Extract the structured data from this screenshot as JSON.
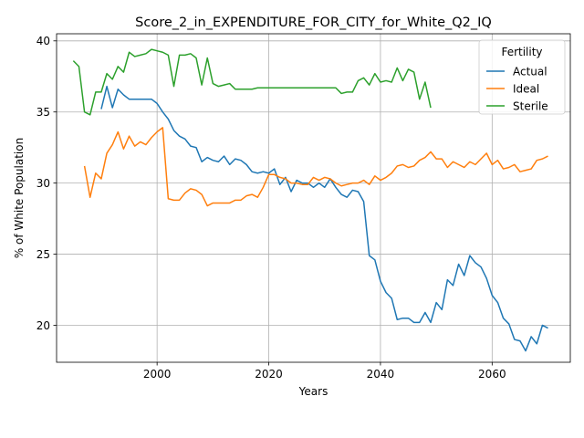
{
  "chart_data": {
    "type": "line",
    "title": "Score_2_in_EXPENDITURE_FOR_CITY_for_White_Q2_IQ",
    "xlabel": "Years",
    "ylabel": "% of White Population",
    "xlim": [
      1982,
      2074
    ],
    "ylim": [
      17.4,
      40.5
    ],
    "xticks": [
      2000,
      2020,
      2040,
      2060
    ],
    "yticks": [
      20,
      25,
      30,
      35,
      40
    ],
    "grid": true,
    "legend": {
      "title": "Fertility",
      "position": "top-right"
    },
    "series": [
      {
        "name": "Actual",
        "color": "#1f77b4",
        "x": [
          1990,
          1991,
          1992,
          1993,
          1994,
          1995,
          1996,
          1997,
          1998,
          1999,
          2000,
          2001,
          2002,
          2003,
          2004,
          2005,
          2006,
          2007,
          2008,
          2009,
          2010,
          2011,
          2012,
          2013,
          2014,
          2015,
          2016,
          2017,
          2018,
          2019,
          2020,
          2021,
          2022,
          2023,
          2024,
          2025,
          2026,
          2027,
          2028,
          2029,
          2030,
          2031,
          2032,
          2033,
          2034,
          2035,
          2036,
          2037,
          2038,
          2039,
          2040,
          2041,
          2042,
          2043,
          2044,
          2045,
          2046,
          2047,
          2048,
          2049,
          2050,
          2051,
          2052,
          2053,
          2054,
          2055,
          2056,
          2057,
          2058,
          2059,
          2060,
          2061,
          2062,
          2063,
          2064,
          2065,
          2066,
          2067,
          2068,
          2069,
          2070
        ],
        "y": [
          35.2,
          36.8,
          35.3,
          36.6,
          36.2,
          35.9,
          35.9,
          35.9,
          35.9,
          35.9,
          35.6,
          35.0,
          34.5,
          33.7,
          33.3,
          33.1,
          32.6,
          32.5,
          31.5,
          31.8,
          31.6,
          31.5,
          31.9,
          31.3,
          31.7,
          31.6,
          31.3,
          30.8,
          30.7,
          30.8,
          30.7,
          31.0,
          29.9,
          30.4,
          29.4,
          30.2,
          30.0,
          30.0,
          29.7,
          30.0,
          29.7,
          30.3,
          29.7,
          29.2,
          29.0,
          29.5,
          29.4,
          28.7,
          24.9,
          24.6,
          23.1,
          22.3,
          21.9,
          20.4,
          20.5,
          20.5,
          20.2,
          20.2,
          20.9,
          20.2,
          21.6,
          21.1,
          23.2,
          22.8,
          24.3,
          23.5,
          24.9,
          24.4,
          24.1,
          23.3,
          22.1,
          21.6,
          20.5,
          20.1,
          19.0,
          18.9,
          18.2,
          19.2,
          18.7,
          20.0,
          19.8
        ]
      },
      {
        "name": "Ideal",
        "color": "#ff7f0e",
        "x": [
          1987,
          1988,
          1989,
          1990,
          1991,
          1992,
          1993,
          1994,
          1995,
          1996,
          1997,
          1998,
          1999,
          2000,
          2001,
          2002,
          2003,
          2004,
          2005,
          2006,
          2007,
          2008,
          2009,
          2010,
          2011,
          2012,
          2013,
          2014,
          2015,
          2016,
          2017,
          2018,
          2019,
          2020,
          2021,
          2022,
          2023,
          2024,
          2025,
          2026,
          2027,
          2028,
          2029,
          2030,
          2031,
          2032,
          2033,
          2034,
          2035,
          2036,
          2037,
          2038,
          2039,
          2040,
          2041,
          2042,
          2043,
          2044,
          2045,
          2046,
          2047,
          2048,
          2049,
          2050,
          2051,
          2052,
          2053,
          2054,
          2055,
          2056,
          2057,
          2058,
          2059,
          2060,
          2061,
          2062,
          2063,
          2064,
          2065,
          2066,
          2067,
          2068,
          2069,
          2070
        ],
        "y": [
          31.2,
          29.0,
          30.7,
          30.3,
          32.1,
          32.7,
          33.6,
          32.4,
          33.3,
          32.6,
          32.9,
          32.7,
          33.2,
          33.6,
          33.9,
          28.9,
          28.8,
          28.8,
          29.3,
          29.6,
          29.5,
          29.2,
          28.4,
          28.6,
          28.6,
          28.6,
          28.6,
          28.8,
          28.8,
          29.1,
          29.2,
          29.0,
          29.7,
          30.6,
          30.6,
          30.4,
          30.3,
          30.0,
          30.0,
          29.9,
          29.9,
          30.4,
          30.2,
          30.4,
          30.3,
          30.0,
          29.8,
          29.9,
          30.0,
          30.0,
          30.2,
          29.9,
          30.5,
          30.2,
          30.4,
          30.7,
          31.2,
          31.3,
          31.1,
          31.2,
          31.6,
          31.8,
          32.2,
          31.7,
          31.7,
          31.1,
          31.5,
          31.3,
          31.1,
          31.5,
          31.3,
          31.7,
          32.1,
          31.3,
          31.6,
          31.0,
          31.1,
          31.3,
          30.8,
          30.9,
          31.0,
          31.6,
          31.7,
          31.9
        ]
      },
      {
        "name": "Sterile",
        "color": "#2ca02c",
        "x": [
          1985,
          1986,
          1987,
          1988,
          1989,
          1990,
          1991,
          1992,
          1993,
          1994,
          1995,
          1996,
          1997,
          1998,
          1999,
          2000,
          2001,
          2002,
          2003,
          2004,
          2005,
          2006,
          2007,
          2008,
          2009,
          2010,
          2011,
          2012,
          2013,
          2014,
          2015,
          2016,
          2017,
          2018,
          2019,
          2020,
          2021,
          2022,
          2023,
          2024,
          2025,
          2026,
          2027,
          2028,
          2029,
          2030,
          2031,
          2032,
          2033,
          2034,
          2035,
          2036,
          2037,
          2038,
          2039,
          2040,
          2041,
          2042,
          2043,
          2044,
          2045,
          2046,
          2047,
          2048,
          2049
        ],
        "y": [
          38.6,
          38.2,
          35.0,
          34.8,
          36.4,
          36.4,
          37.7,
          37.3,
          38.2,
          37.8,
          39.2,
          38.9,
          39.0,
          39.1,
          39.4,
          39.3,
          39.2,
          39.0,
          36.8,
          39.0,
          39.0,
          39.1,
          38.8,
          36.9,
          38.8,
          37.0,
          36.8,
          36.9,
          37.0,
          36.6,
          36.6,
          36.6,
          36.6,
          36.7,
          36.7,
          36.7,
          36.7,
          36.7,
          36.7,
          36.7,
          36.7,
          36.7,
          36.7,
          36.7,
          36.7,
          36.7,
          36.7,
          36.7,
          36.3,
          36.4,
          36.4,
          37.2,
          37.4,
          36.9,
          37.7,
          37.1,
          37.2,
          37.1,
          38.1,
          37.2,
          38.0,
          37.8,
          35.9,
          37.1,
          35.3
        ]
      }
    ]
  }
}
